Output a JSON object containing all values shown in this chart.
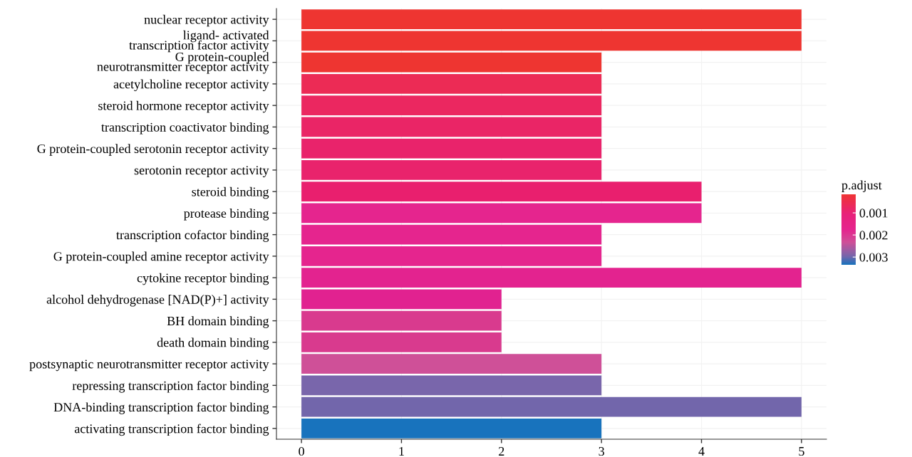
{
  "chart_data": {
    "type": "bar",
    "orientation": "horizontal",
    "categories": [
      "nuclear receptor activity",
      "ligand- activated\ntranscription factor activity",
      "G protein-coupled\nneurotransmitter receptor activity",
      "acetylcholine receptor activity",
      "steroid hormone receptor activity",
      "transcription coactivator binding",
      "G protein-coupled serotonin receptor activity",
      "serotonin receptor activity",
      "steroid binding",
      "protease binding",
      "transcription cofactor binding",
      "G protein-coupled amine receptor activity",
      "cytokine receptor binding",
      "alcohol dehydrogenase [NAD(P)+] activity",
      "BH domain binding",
      "death domain binding",
      "postsynaptic neurotransmitter receptor activity",
      "repressing transcription factor binding",
      "DNA-binding transcription factor binding",
      "activating transcription factor binding"
    ],
    "values": [
      5,
      5,
      3,
      3,
      3,
      3,
      3,
      3,
      4,
      4,
      3,
      3,
      5,
      2,
      2,
      2,
      3,
      3,
      5,
      3
    ],
    "colors": [
      "#ee3531",
      "#ee3531",
      "#ee3531",
      "#ec2b55",
      "#eb2760",
      "#ea2566",
      "#e9236b",
      "#e9236c",
      "#e91f6e",
      "#e5258e",
      "#e5258e",
      "#e5258e",
      "#e3238f",
      "#e12290",
      "#d93a8e",
      "#d93a8e",
      "#cf5098",
      "#7966ab",
      "#7266ab",
      "#1873bd"
    ],
    "xlim": [
      -0.25,
      5.25
    ],
    "xticks": [
      0,
      1,
      2,
      3,
      4,
      5
    ],
    "grid": true,
    "clabel": "p.adjust",
    "clim": [
      0.00016,
      0.00335
    ],
    "cticks": [
      0.001,
      0.002,
      0.003
    ]
  }
}
